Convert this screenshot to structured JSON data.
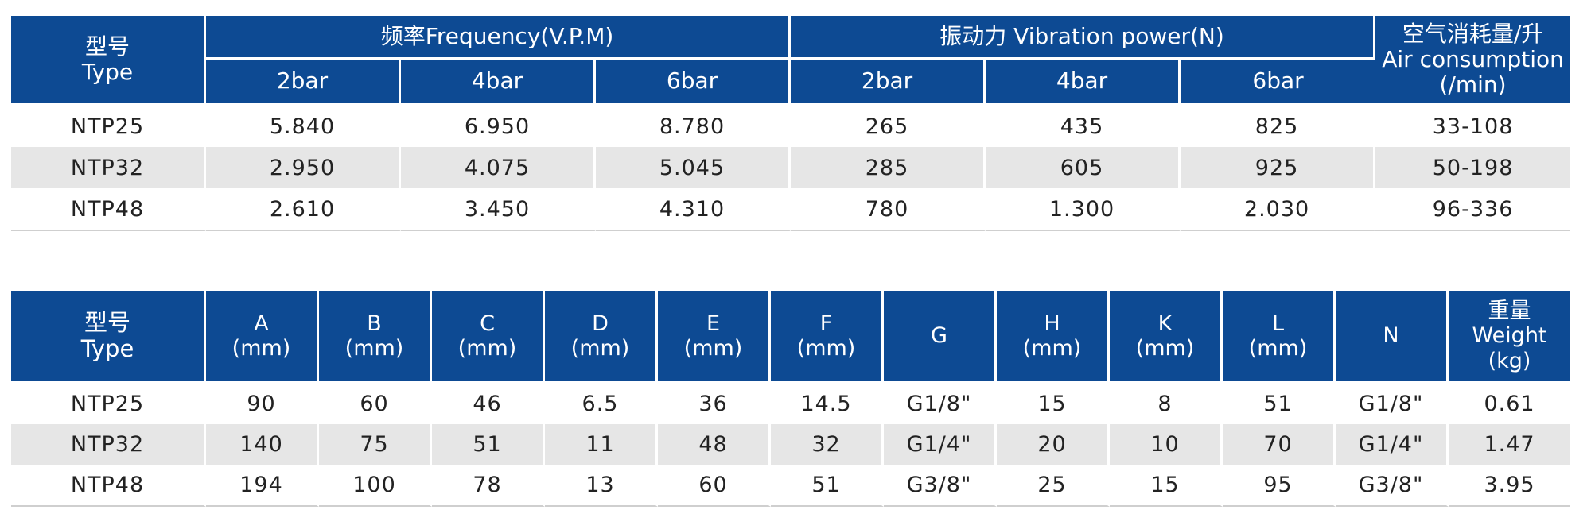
{
  "table1": {
    "type_zh": "型号",
    "type_en": "Type",
    "frequency_header": "频率Frequency(V.P.M)",
    "vibration_header": "振动力 Vibration power(N)",
    "air_zh": "空气消耗量/升",
    "air_en": "Air consumption",
    "air_unit": "(/min)",
    "pressure_labels": [
      "2bar",
      "4bar",
      "6bar",
      "2bar",
      "4bar",
      "6bar"
    ],
    "rows": [
      [
        "NTP25",
        "5.840",
        "6.950",
        "8.780",
        "265",
        "435",
        "825",
        "33-108"
      ],
      [
        "NTP32",
        "2.950",
        "4.075",
        "5.045",
        "285",
        "605",
        "925",
        "50-198"
      ],
      [
        "NTP48",
        "2.610",
        "3.450",
        "4.310",
        "780",
        "1.300",
        "2.030",
        "96-336"
      ]
    ]
  },
  "table2": {
    "type_zh": "型号",
    "type_en": "Type",
    "dim_cols": [
      {
        "letter": "A",
        "unit": "(mm)"
      },
      {
        "letter": "B",
        "unit": "(mm)"
      },
      {
        "letter": "C",
        "unit": "(mm)"
      },
      {
        "letter": "D",
        "unit": "(mm)"
      },
      {
        "letter": "E",
        "unit": "(mm)"
      },
      {
        "letter": "F",
        "unit": "(mm)"
      },
      {
        "letter": "G",
        "unit": ""
      },
      {
        "letter": "H",
        "unit": "(mm)"
      },
      {
        "letter": "K",
        "unit": "(mm)"
      },
      {
        "letter": "L",
        "unit": "(mm)"
      },
      {
        "letter": "N",
        "unit": ""
      }
    ],
    "weight_zh": "重量",
    "weight_en": "Weight",
    "weight_unit": "(kg)",
    "rows": [
      [
        "NTP25",
        "90",
        "60",
        "46",
        "6.5",
        "36",
        "14.5",
        "G1/8\"",
        "15",
        "8",
        "51",
        "G1/8\"",
        "0.61"
      ],
      [
        "NTP32",
        "140",
        "75",
        "51",
        "11",
        "48",
        "32",
        "G1/4\"",
        "20",
        "10",
        "70",
        "G1/4\"",
        "1.47"
      ],
      [
        "NTP48",
        "194",
        "100",
        "78",
        "13",
        "60",
        "51",
        "G3/8\"",
        "25",
        "15",
        "95",
        "G3/8\"",
        "3.95"
      ]
    ]
  }
}
